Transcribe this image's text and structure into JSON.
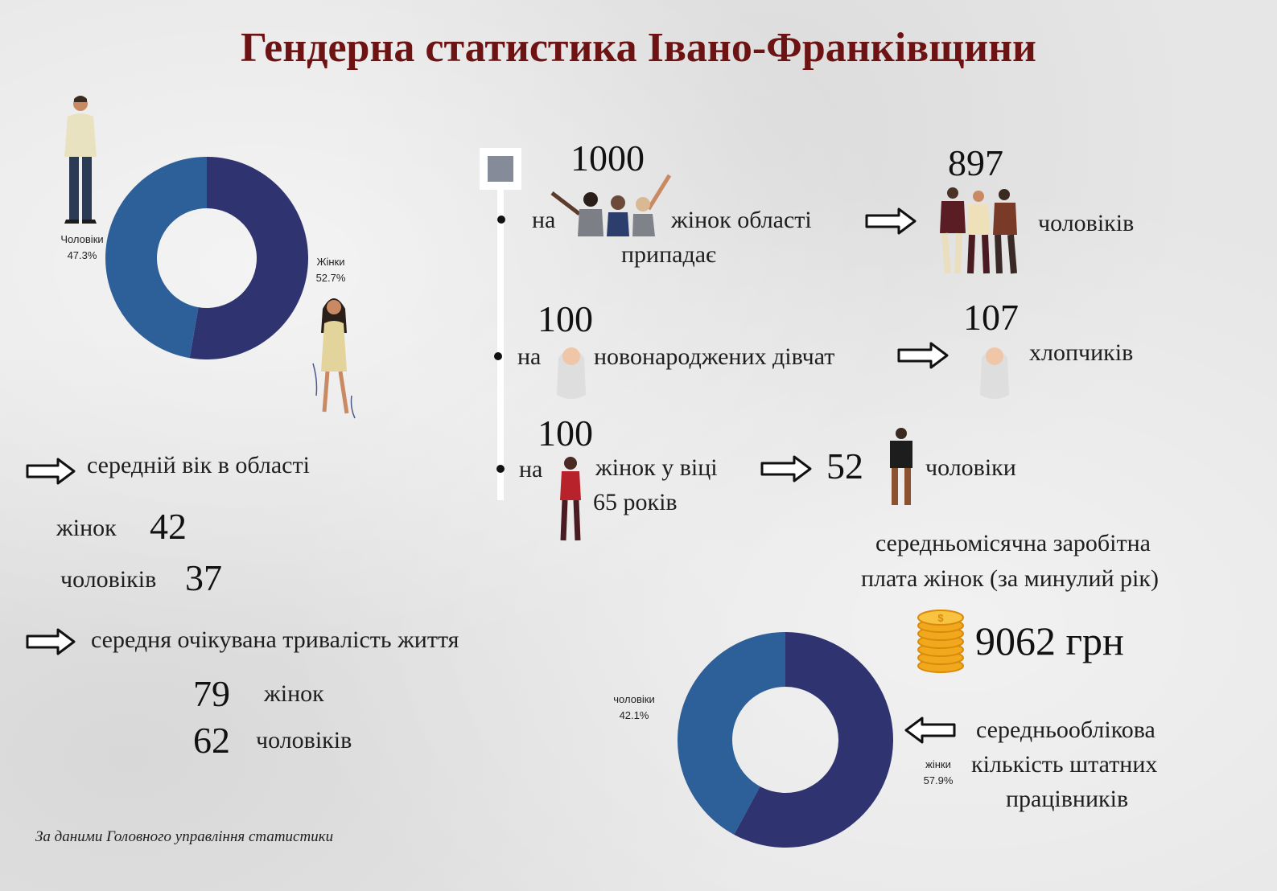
{
  "title": "Гендерна статистика Івано-Франківщини",
  "colors": {
    "title": "#6e1313",
    "dark_navy": "#2f3470",
    "blue": "#2d5f99"
  },
  "chart_data": [
    {
      "type": "pie",
      "subtype": "donut",
      "slices": [
        {
          "label": "Жінки",
          "value": 52.7,
          "label_text": "52.7%",
          "color": "#2f3470"
        },
        {
          "label": "Чоловіки",
          "value": 47.3,
          "label_text": "47.3%",
          "color": "#2d5f99"
        }
      ]
    },
    {
      "type": "pie",
      "subtype": "donut",
      "slices": [
        {
          "label": "жінки",
          "value": 57.9,
          "label_text": "57.9%",
          "color": "#2f3470"
        },
        {
          "label": "чоловіки",
          "value": 42.1,
          "label_text": "42.1%",
          "color": "#2d5f99"
        }
      ]
    }
  ],
  "timeline": {
    "row1": {
      "on": "на",
      "number": "1000",
      "text": "жінок області",
      "text2": "припадає",
      "result": "897",
      "result_text": "чоловіків"
    },
    "row2": {
      "on": "на",
      "number": "100",
      "text": "новонароджених дівчат",
      "result": "107",
      "result_text": "хлопчиків"
    },
    "row3": {
      "on": "на",
      "number": "100",
      "text": "жінок у віці",
      "text2": "65 років",
      "result": "52",
      "result_text": "чоловіки"
    }
  },
  "avg_age": {
    "heading": "середній вік в області",
    "women_label": "жінок",
    "women_value": "42",
    "men_label": "чоловіків",
    "men_value": "37"
  },
  "life_exp": {
    "heading": "середня очікувана тривалість життя",
    "women_value": "79",
    "women_label": "жінок",
    "men_value": "62",
    "men_label": "чоловіків"
  },
  "salary": {
    "line1": "середньомісячна заробітна",
    "line2": "плата жінок (за минулий рік)",
    "value": "9062 грн"
  },
  "staff": {
    "line1": "середньооблікова",
    "line2": "кількість штатних",
    "line3": "працівників"
  },
  "source": "За даними Головного управління статистики"
}
